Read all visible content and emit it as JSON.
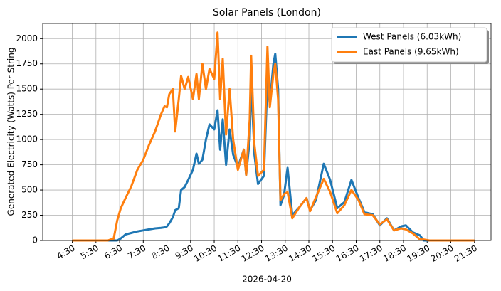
{
  "chart_data": {
    "type": "line",
    "title": "Solar Panels (London)",
    "x_label": "2026-04-20",
    "y_label": "Generated Electricity (Watts) Per String",
    "x": [
      4.5,
      5.0,
      5.5,
      6.0,
      6.25,
      6.4,
      6.55,
      6.75,
      7.0,
      7.25,
      7.5,
      7.75,
      8.0,
      8.25,
      8.4,
      8.5,
      8.6,
      8.75,
      8.85,
      9.0,
      9.1,
      9.25,
      9.4,
      9.6,
      9.75,
      9.85,
      10.0,
      10.15,
      10.3,
      10.5,
      10.64,
      10.75,
      10.86,
      11.0,
      11.15,
      11.3,
      11.5,
      11.75,
      11.85,
      12.0,
      12.06,
      12.2,
      12.35,
      12.6,
      12.75,
      12.85,
      13.0,
      13.08,
      13.2,
      13.3,
      13.45,
      13.6,
      13.8,
      14.1,
      14.4,
      14.55,
      14.8,
      15.13,
      15.4,
      15.7,
      16.0,
      16.3,
      16.6,
      16.85,
      17.2,
      17.5,
      17.8,
      18.1,
      18.4,
      18.6,
      18.9,
      19.2,
      19.35,
      19.6,
      20.0,
      20.5,
      21.0,
      21.5
    ],
    "series": [
      {
        "name": "West Panels (6.03kWh)",
        "color": "#1f77b4",
        "values": [
          0,
          0,
          0,
          0,
          0,
          0,
          20,
          60,
          75,
          90,
          100,
          110,
          120,
          125,
          130,
          140,
          170,
          230,
          300,
          320,
          500,
          530,
          600,
          700,
          860,
          760,
          800,
          1000,
          1150,
          1100,
          1290,
          900,
          1200,
          750,
          1100,
          850,
          730,
          900,
          650,
          1000,
          1600,
          850,
          560,
          640,
          1600,
          1350,
          1750,
          1850,
          1500,
          350,
          450,
          720,
          250,
          330,
          420,
          300,
          400,
          760,
          600,
          320,
          380,
          600,
          420,
          280,
          260,
          150,
          220,
          100,
          140,
          150,
          80,
          50,
          0,
          0,
          0,
          0,
          0,
          0
        ]
      },
      {
        "name": "East Panels (9.65kWh)",
        "color": "#ff7f0e",
        "values": [
          0,
          0,
          0,
          0,
          20,
          200,
          320,
          420,
          540,
          700,
          800,
          950,
          1080,
          1250,
          1330,
          1320,
          1450,
          1500,
          1080,
          1400,
          1630,
          1500,
          1620,
          1400,
          1650,
          1400,
          1750,
          1500,
          1700,
          1600,
          2060,
          1400,
          1800,
          1050,
          1500,
          1000,
          700,
          900,
          650,
          1200,
          1830,
          950,
          640,
          700,
          1920,
          1320,
          1650,
          1750,
          1400,
          400,
          460,
          480,
          220,
          330,
          420,
          290,
          430,
          610,
          480,
          270,
          350,
          500,
          400,
          260,
          250,
          160,
          210,
          100,
          120,
          110,
          70,
          10,
          10,
          0,
          0,
          0,
          0,
          0
        ]
      }
    ],
    "xlim": [
      3.25,
      22.2
    ],
    "xticks": [
      {
        "value": 4.5,
        "label": "4:30"
      },
      {
        "value": 5.5,
        "label": "5:30"
      },
      {
        "value": 6.5,
        "label": "6:30"
      },
      {
        "value": 7.5,
        "label": "7:30"
      },
      {
        "value": 8.5,
        "label": "8:30"
      },
      {
        "value": 9.5,
        "label": "9:30"
      },
      {
        "value": 10.5,
        "label": "10:30"
      },
      {
        "value": 11.5,
        "label": "11:30"
      },
      {
        "value": 12.5,
        "label": "12:30"
      },
      {
        "value": 13.5,
        "label": "13:30"
      },
      {
        "value": 14.5,
        "label": "14:30"
      },
      {
        "value": 15.5,
        "label": "15:30"
      },
      {
        "value": 16.5,
        "label": "16:30"
      },
      {
        "value": 17.5,
        "label": "17:30"
      },
      {
        "value": 18.5,
        "label": "18:30"
      },
      {
        "value": 19.5,
        "label": "19:30"
      },
      {
        "value": 20.5,
        "label": "20:30"
      },
      {
        "value": 21.5,
        "label": "21:30"
      }
    ],
    "ylim": [
      0,
      2150
    ],
    "yticks": [
      0,
      250,
      500,
      750,
      1000,
      1250,
      1500,
      1750,
      2000
    ],
    "grid": true,
    "legend": "upper right"
  }
}
